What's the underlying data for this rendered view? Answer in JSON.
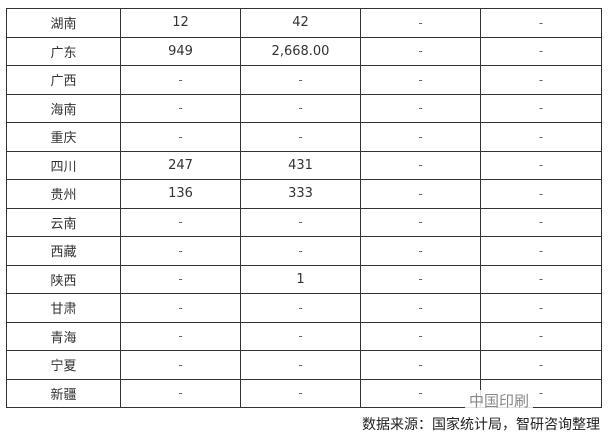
{
  "table": {
    "rows": [
      [
        "湖南",
        "12",
        "42",
        "-",
        "-"
      ],
      [
        "广东",
        "949",
        "2,668.00",
        "-",
        "-"
      ],
      [
        "广西",
        "-",
        "-",
        "-",
        "-"
      ],
      [
        "海南",
        "-",
        "-",
        "-",
        "-"
      ],
      [
        "重庆",
        "-",
        "-",
        "-",
        "-"
      ],
      [
        "四川",
        "247",
        "431",
        "-",
        "-"
      ],
      [
        "贵州",
        "136",
        "333",
        "-",
        "-"
      ],
      [
        "云南",
        "-",
        "-",
        "-",
        "-"
      ],
      [
        "西藏",
        "-",
        "-",
        "-",
        "-"
      ],
      [
        "陕西",
        "-",
        "1",
        "-",
        "-"
      ],
      [
        "甘肃",
        "-",
        "-",
        "-",
        "-"
      ],
      [
        "青海",
        "-",
        "-",
        "-",
        "-"
      ],
      [
        "宁夏",
        "-",
        "-",
        "-",
        "-"
      ],
      [
        "新疆",
        "-",
        "-",
        "-",
        "-"
      ]
    ]
  },
  "watermark": "中国印刷",
  "caption": "数据来源：国家统计局，智研咨询整理"
}
